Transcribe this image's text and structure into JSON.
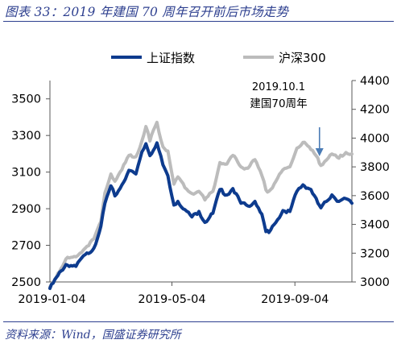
{
  "figure": {
    "title": "图表 33：2019 年建国 70 周年召开前后市场走势",
    "source": "资料来源：Wind，国盛证券研究所"
  },
  "chart_data": {
    "type": "line",
    "legend_position": "top",
    "grid": false,
    "x_ticks": [
      "2019-01-04",
      "2019-05-04",
      "2019-09-04"
    ],
    "x_range": [
      "2019-01-02",
      "2019-10-31"
    ],
    "y_left": {
      "range": [
        2500,
        3600
      ],
      "ticks": [
        2500,
        2700,
        2900,
        3100,
        3300,
        3500
      ]
    },
    "y_right": {
      "range": [
        3000,
        4400
      ],
      "ticks": [
        3000,
        3200,
        3400,
        3600,
        3800,
        4000,
        4200,
        4400
      ]
    },
    "annotation": {
      "date": "2019-10-01",
      "lines": [
        "2019.10.1",
        "建国70周年"
      ]
    },
    "series": [
      {
        "name": "上证指数",
        "axis": "left",
        "color": "#0d3b8e",
        "points": [
          [
            "2019-01-02",
            2465
          ],
          [
            "2019-01-10",
            2535
          ],
          [
            "2019-01-18",
            2595
          ],
          [
            "2019-01-28",
            2585
          ],
          [
            "2019-02-01",
            2620
          ],
          [
            "2019-02-15",
            2685
          ],
          [
            "2019-02-22",
            2805
          ],
          [
            "2019-02-26",
            2930
          ],
          [
            "2019-03-04",
            3025
          ],
          [
            "2019-03-08",
            2970
          ],
          [
            "2019-03-15",
            3030
          ],
          [
            "2019-03-22",
            3110
          ],
          [
            "2019-03-29",
            3090
          ],
          [
            "2019-04-04",
            3210
          ],
          [
            "2019-04-08",
            3255
          ],
          [
            "2019-04-12",
            3190
          ],
          [
            "2019-04-19",
            3260
          ],
          [
            "2019-04-25",
            3140
          ],
          [
            "2019-04-30",
            3080
          ],
          [
            "2019-05-06",
            2920
          ],
          [
            "2019-05-10",
            2940
          ],
          [
            "2019-05-17",
            2895
          ],
          [
            "2019-05-24",
            2855
          ],
          [
            "2019-05-31",
            2885
          ],
          [
            "2019-06-06",
            2825
          ],
          [
            "2019-06-14",
            2875
          ],
          [
            "2019-06-21",
            3005
          ],
          [
            "2019-06-28",
            2975
          ],
          [
            "2019-07-04",
            3010
          ],
          [
            "2019-07-12",
            2930
          ],
          [
            "2019-07-19",
            2915
          ],
          [
            "2019-07-26",
            2940
          ],
          [
            "2019-08-02",
            2870
          ],
          [
            "2019-08-06",
            2775
          ],
          [
            "2019-08-09",
            2770
          ],
          [
            "2019-08-16",
            2825
          ],
          [
            "2019-08-23",
            2890
          ],
          [
            "2019-08-30",
            2885
          ],
          [
            "2019-09-06",
            2995
          ],
          [
            "2019-09-12",
            3030
          ],
          [
            "2019-09-20",
            3005
          ],
          [
            "2019-09-27",
            2930
          ],
          [
            "2019-09-30",
            2905
          ],
          [
            "2019-10-11",
            2975
          ],
          [
            "2019-10-18",
            2940
          ],
          [
            "2019-10-25",
            2955
          ],
          [
            "2019-10-31",
            2930
          ]
        ]
      },
      {
        "name": "沪深300",
        "axis": "right",
        "color": "#bcbcbc",
        "points": [
          [
            "2019-01-02",
            2965
          ],
          [
            "2019-01-10",
            3060
          ],
          [
            "2019-01-18",
            3160
          ],
          [
            "2019-01-28",
            3175
          ],
          [
            "2019-02-01",
            3200
          ],
          [
            "2019-02-15",
            3300
          ],
          [
            "2019-02-22",
            3420
          ],
          [
            "2019-02-26",
            3620
          ],
          [
            "2019-03-04",
            3750
          ],
          [
            "2019-03-08",
            3700
          ],
          [
            "2019-03-15",
            3780
          ],
          [
            "2019-03-22",
            3880
          ],
          [
            "2019-03-29",
            3870
          ],
          [
            "2019-04-04",
            3980
          ],
          [
            "2019-04-08",
            4080
          ],
          [
            "2019-04-12",
            3980
          ],
          [
            "2019-04-19",
            4110
          ],
          [
            "2019-04-25",
            3940
          ],
          [
            "2019-04-30",
            3910
          ],
          [
            "2019-05-06",
            3680
          ],
          [
            "2019-05-10",
            3730
          ],
          [
            "2019-05-17",
            3655
          ],
          [
            "2019-05-24",
            3615
          ],
          [
            "2019-05-31",
            3630
          ],
          [
            "2019-06-06",
            3570
          ],
          [
            "2019-06-14",
            3630
          ],
          [
            "2019-06-21",
            3830
          ],
          [
            "2019-06-28",
            3820
          ],
          [
            "2019-07-04",
            3880
          ],
          [
            "2019-07-12",
            3800
          ],
          [
            "2019-07-19",
            3790
          ],
          [
            "2019-07-26",
            3850
          ],
          [
            "2019-08-02",
            3740
          ],
          [
            "2019-08-06",
            3640
          ],
          [
            "2019-08-09",
            3630
          ],
          [
            "2019-08-16",
            3700
          ],
          [
            "2019-08-23",
            3780
          ],
          [
            "2019-08-30",
            3800
          ],
          [
            "2019-09-06",
            3930
          ],
          [
            "2019-09-12",
            3970
          ],
          [
            "2019-09-20",
            3920
          ],
          [
            "2019-09-27",
            3860
          ],
          [
            "2019-09-30",
            3810
          ],
          [
            "2019-10-11",
            3890
          ],
          [
            "2019-10-18",
            3860
          ],
          [
            "2019-10-25",
            3900
          ],
          [
            "2019-10-31",
            3890
          ]
        ]
      }
    ]
  }
}
